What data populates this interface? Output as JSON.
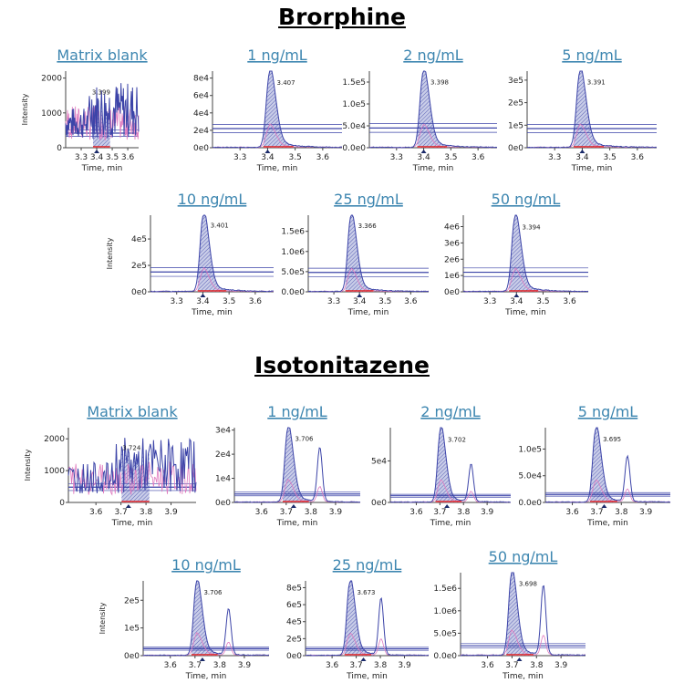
{
  "chart_data": [
    {
      "type": "line",
      "title": "Brorphine",
      "xlabel": "Time, min",
      "ylabel": "Intensity",
      "xlim": [
        3.2,
        3.67
      ],
      "xticks": [
        "3.3",
        "3.4",
        "3.5",
        "3.6"
      ],
      "panels": [
        {
          "label": "Matrix blank",
          "rt": "3.399",
          "blank": true,
          "ylim": [
            0,
            2200
          ],
          "yticks": [
            [
              0,
              "0"
            ],
            [
              1000,
              "1000"
            ],
            [
              2000,
              "2000"
            ]
          ],
          "peak": 1400,
          "threshold": 420
        },
        {
          "label": "1 ng/mL",
          "rt": "3.407",
          "ylim": [
            0,
            88000
          ],
          "yticks": [
            [
              0,
              "0e0"
            ],
            [
              20000,
              "2e4"
            ],
            [
              40000,
              "4e4"
            ],
            [
              60000,
              "6e4"
            ],
            [
              80000,
              "8e4"
            ]
          ],
          "peak": 85000,
          "threshold": 22000
        },
        {
          "label": "2 ng/mL",
          "rt": "3.398",
          "ylim": [
            0,
            175000
          ],
          "yticks": [
            [
              0,
              "0.0e0"
            ],
            [
              50000,
              "5.0e4"
            ],
            [
              100000,
              "1.0e5"
            ],
            [
              150000,
              "1.5e5"
            ]
          ],
          "peak": 170000,
          "threshold": 45000
        },
        {
          "label": "5 ng/mL",
          "rt": "3.391",
          "ylim": [
            0,
            340000
          ],
          "yticks": [
            [
              0,
              "0e0"
            ],
            [
              100000,
              "1e5"
            ],
            [
              200000,
              "2e5"
            ],
            [
              300000,
              "3e5"
            ]
          ],
          "peak": 330000,
          "threshold": 85000
        },
        {
          "label": "10 ng/mL",
          "rt": "3.401",
          "ylim": [
            0,
            580000
          ],
          "yticks": [
            [
              0,
              "0e0"
            ],
            [
              200000,
              "2e5"
            ],
            [
              400000,
              "4e5"
            ]
          ],
          "peak": 570000,
          "threshold": 150000
        },
        {
          "label": "25 ng/mL",
          "rt": "3.366",
          "ylim": [
            0,
            1900000
          ],
          "yticks": [
            [
              0,
              "0.0e0"
            ],
            [
              500000,
              "5.0e5"
            ],
            [
              1000000,
              "1.0e6"
            ],
            [
              1500000,
              "1.5e6"
            ]
          ],
          "peak": 1850000,
          "threshold": 480000
        },
        {
          "label": "50 ng/mL",
          "rt": "3.394",
          "ylim": [
            0,
            4700000
          ],
          "yticks": [
            [
              0,
              "0e0"
            ],
            [
              1000000,
              "1e6"
            ],
            [
              2000000,
              "2e6"
            ],
            [
              3000000,
              "3e6"
            ],
            [
              4000000,
              "4e6"
            ]
          ],
          "peak": 4500000,
          "threshold": 1200000
        }
      ]
    },
    {
      "type": "line",
      "title": "Isotonitazene",
      "xlabel": "Time, min",
      "ylabel": "Intensity",
      "xlim": [
        3.49,
        4.0
      ],
      "xticks": [
        "3.6",
        "3.7",
        "3.8",
        "3.9"
      ],
      "panels": [
        {
          "label": "Matrix blank",
          "rt": "3.724",
          "blank": true,
          "ylim": [
            0,
            2350
          ],
          "yticks": [
            [
              0,
              "0"
            ],
            [
              1000,
              "1000"
            ],
            [
              2000,
              "2000"
            ]
          ],
          "peak": 1500,
          "threshold": 480
        },
        {
          "label": "1 ng/mL",
          "rt": "3.706",
          "ylim": [
            0,
            31000
          ],
          "yticks": [
            [
              0,
              "0e0"
            ],
            [
              10000,
              "1e4"
            ],
            [
              20000,
              "2e4"
            ],
            [
              30000,
              "3e4"
            ]
          ],
          "peak": 30000,
          "peak2": 22500,
          "threshold": 3500
        },
        {
          "label": "2 ng/mL",
          "rt": "3.702",
          "ylim": [
            0,
            90000
          ],
          "yticks": [
            [
              0,
              "0e0"
            ],
            [
              50000,
              "5e4"
            ]
          ],
          "peak": 86000,
          "peak2": 45000,
          "threshold": 8000
        },
        {
          "label": "5 ng/mL",
          "rt": "3.695",
          "ylim": [
            0,
            140000
          ],
          "yticks": [
            [
              0,
              "0.0e0"
            ],
            [
              50000,
              "5.0e4"
            ],
            [
              100000,
              "1.0e5"
            ]
          ],
          "peak": 135000,
          "peak2": 85000,
          "threshold": 15000
        },
        {
          "label": "10 ng/mL",
          "rt": "3.706",
          "ylim": [
            0,
            270000
          ],
          "yticks": [
            [
              0,
              "0e0"
            ],
            [
              100000,
              "1e5"
            ],
            [
              200000,
              "2e5"
            ]
          ],
          "peak": 260000,
          "peak2": 165000,
          "threshold": 25000
        },
        {
          "label": "25 ng/mL",
          "rt": "3.673",
          "ylim": [
            0,
            880000
          ],
          "yticks": [
            [
              0,
              "0e0"
            ],
            [
              200000,
              "2e5"
            ],
            [
              400000,
              "4e5"
            ],
            [
              600000,
              "6e5"
            ],
            [
              800000,
              "8e5"
            ]
          ],
          "peak": 850000,
          "peak2": 670000,
          "threshold": 80000
        },
        {
          "label": "50 ng/mL",
          "rt": "3.698",
          "ylim": [
            0,
            1850000
          ],
          "yticks": [
            [
              0,
              "0.0e0"
            ],
            [
              500000,
              "5.0e5"
            ],
            [
              1000000,
              "1.0e6"
            ],
            [
              1500000,
              "1.5e6"
            ]
          ],
          "peak": 1800000,
          "peak2": 1550000,
          "threshold": 220000
        }
      ]
    }
  ],
  "colors": {
    "trace": "#3c44a8",
    "qualifier": "#e07bbf",
    "baseline": "#e02020",
    "title": "#3d86b0"
  }
}
